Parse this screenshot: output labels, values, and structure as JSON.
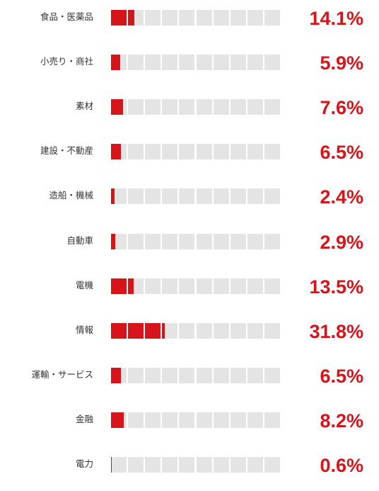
{
  "chart_data": {
    "type": "bar",
    "categories": [
      "食品・医薬品",
      "小売り・商社",
      "素材",
      "建設・不動産",
      "造船・機械",
      "自動車",
      "電機",
      "情報",
      "運輸・サービス",
      "金融",
      "電力"
    ],
    "values": [
      14.1,
      5.9,
      7.6,
      6.5,
      2.4,
      2.9,
      13.5,
      31.8,
      6.5,
      8.2,
      0.6
    ],
    "value_labels": [
      "14.1%",
      "5.9%",
      "7.6%",
      "6.5%",
      "2.4%",
      "2.9%",
      "13.5%",
      "31.8%",
      "6.5%",
      "8.2%",
      "0.6%"
    ],
    "unit": "%",
    "scale_max": 100,
    "segments": 10,
    "colors": {
      "fill": "#d7141a",
      "empty": "#e4e4e4",
      "value_text": "#d7141a",
      "label_text": "#333333"
    }
  }
}
